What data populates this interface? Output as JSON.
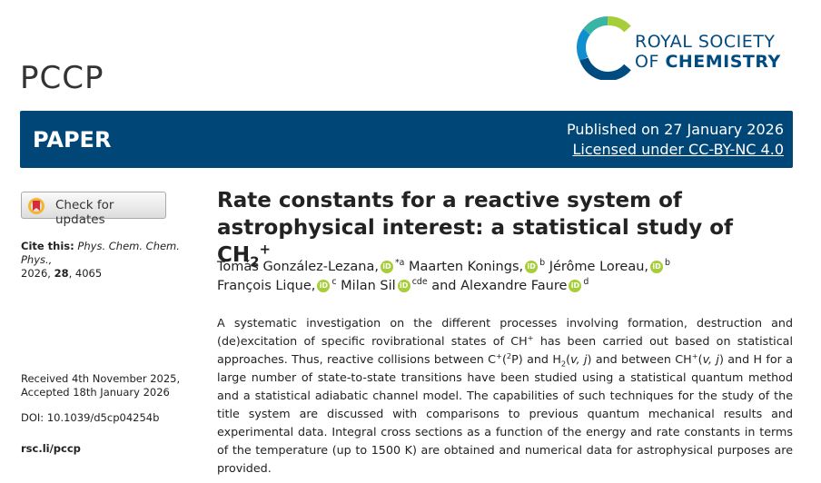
{
  "header": {
    "journal": "PCCP",
    "publisher_line1": "ROYAL SOCIETY",
    "publisher_of": "OF",
    "publisher_chemistry": "CHEMISTRY"
  },
  "banner": {
    "article_type": "PAPER",
    "published": "Published on 27 January 2026",
    "license": "Licensed under CC-BY-NC 4.0"
  },
  "sidebar": {
    "check_updates": "Check for updates",
    "cite_label": "Cite this:",
    "cite_journal": "Phys. Chem. Chem. Phys.,",
    "cite_year": "2026,",
    "cite_volume": "28",
    "cite_page": "4065",
    "received": "Received 4th November 2025,",
    "accepted": "Accepted 18th January 2026",
    "doi": "DOI: 10.1039/d5cp04254b",
    "url": "rsc.li/pccp"
  },
  "title": {
    "text": "Rate constants for a reactive system of astrophysical interest: a statistical study of CH",
    "subscript": "2",
    "superscript": "+"
  },
  "authors": [
    {
      "name": "Tomás González-Lezana,",
      "marks": "*a"
    },
    {
      "name": "Maarten Konings,",
      "marks": "b"
    },
    {
      "name": "Jérôme Loreau,",
      "marks": "b"
    },
    {
      "name": "François Lique,",
      "marks": "c"
    },
    {
      "name": "Milan Sil",
      "marks": "cde"
    },
    {
      "name": "Alexandre Faure",
      "marks": "d"
    }
  ],
  "authors_conjunction": "and",
  "abstract": [
    "A systematic investigation on the different processes involving formation, destruction and (de)excitation of specific rovibrational states of CH",
    "+",
    " has been carried out based on statistical approaches. Thus, reactive collisions between C",
    "+",
    "(",
    "2",
    "P) and H",
    "2",
    "(",
    "v, j",
    ") and between CH",
    "+",
    "(",
    "v, j",
    ") and H for a large number of state-to-state transitions have been studied using a statistical quantum method and a statistical adiabatic channel model. The capabilities of such techniques for the study of the title system are discussed with comparisons to previous quantum mechanical results and experimental data. Integral cross sections as a function of the energy and rate constants in terms of the temperature (up to 1500 K) are obtained and numerical data for astrophysical purposes are provided."
  ]
}
